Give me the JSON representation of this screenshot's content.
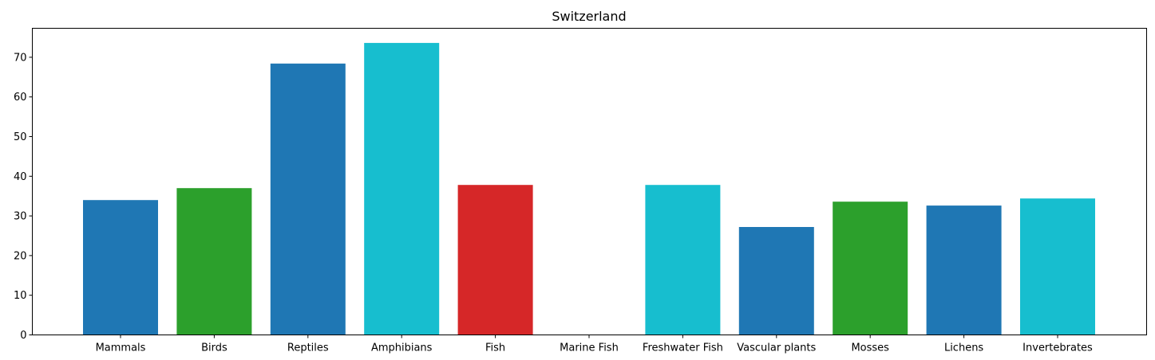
{
  "chart_data": {
    "type": "bar",
    "title": "Switzerland",
    "xlabel": "",
    "ylabel": "",
    "categories": [
      "Mammals",
      "Birds",
      "Reptiles",
      "Amphibians",
      "Fish",
      "Marine Fish",
      "Freshwater Fish",
      "Vascular plants",
      "Mosses",
      "Lichens",
      "Invertebrates"
    ],
    "values": [
      34.0,
      37.0,
      68.4,
      73.6,
      37.8,
      0,
      37.8,
      27.2,
      33.6,
      32.6,
      34.4
    ],
    "colors": [
      "#1f77b4",
      "#2ca02c",
      "#1f77b4",
      "#17becf",
      "#d62728",
      "#1f77b4",
      "#17becf",
      "#1f77b4",
      "#2ca02c",
      "#1f77b4",
      "#17becf"
    ],
    "ylim": [
      0,
      77.3
    ],
    "yticks": [
      0,
      10,
      20,
      30,
      40,
      50,
      60,
      70
    ],
    "grid": false,
    "legend": "none"
  }
}
